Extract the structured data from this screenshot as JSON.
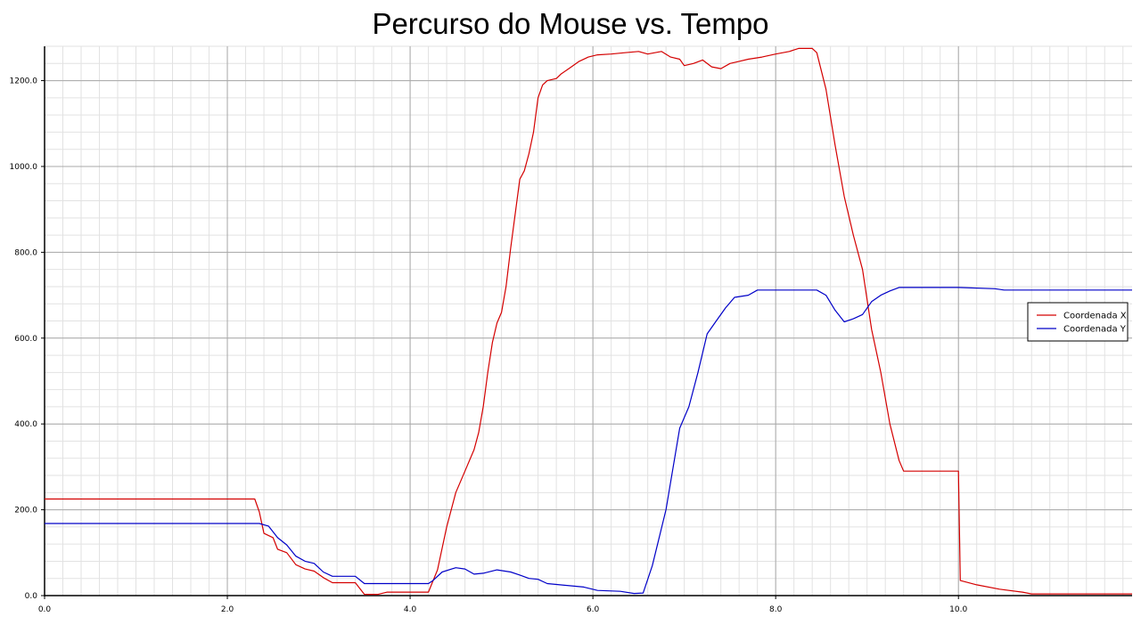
{
  "chart_data": {
    "type": "line",
    "title": "Percurso do Mouse vs. Tempo",
    "xlabel": "",
    "ylabel": "",
    "xlim": [
      0,
      11.9
    ],
    "ylim": [
      0,
      1280
    ],
    "x_ticks": [
      0,
      2,
      4,
      6,
      8,
      10
    ],
    "x_tick_labels": [
      "0.0",
      "2.0",
      "4.0",
      "6.0",
      "8.0",
      "10.0"
    ],
    "y_ticks": [
      0,
      200,
      400,
      600,
      800,
      1000,
      1200
    ],
    "y_tick_labels": [
      "0.0",
      "200.0",
      "400.0",
      "600.0",
      "800.0",
      "1000.0",
      "1200.0"
    ],
    "grid": true,
    "legend_position": "right",
    "series": [
      {
        "name": "Coordenada X",
        "color": "#d40000",
        "points": [
          [
            0,
            225
          ],
          [
            2.3,
            225
          ],
          [
            2.35,
            195
          ],
          [
            2.4,
            145
          ],
          [
            2.5,
            135
          ],
          [
            2.55,
            108
          ],
          [
            2.65,
            100
          ],
          [
            2.75,
            72
          ],
          [
            2.85,
            62
          ],
          [
            2.95,
            57
          ],
          [
            3.05,
            42
          ],
          [
            3.15,
            30
          ],
          [
            3.4,
            30
          ],
          [
            3.5,
            3
          ],
          [
            3.65,
            3
          ],
          [
            3.75,
            8
          ],
          [
            4.2,
            8
          ],
          [
            4.3,
            60
          ],
          [
            4.4,
            160
          ],
          [
            4.5,
            240
          ],
          [
            4.6,
            290
          ],
          [
            4.7,
            340
          ],
          [
            4.75,
            380
          ],
          [
            4.8,
            440
          ],
          [
            4.85,
            520
          ],
          [
            4.9,
            590
          ],
          [
            4.95,
            635
          ],
          [
            5.0,
            660
          ],
          [
            5.05,
            720
          ],
          [
            5.1,
            810
          ],
          [
            5.15,
            890
          ],
          [
            5.2,
            970
          ],
          [
            5.25,
            990
          ],
          [
            5.3,
            1030
          ],
          [
            5.35,
            1080
          ],
          [
            5.4,
            1160
          ],
          [
            5.45,
            1190
          ],
          [
            5.5,
            1200
          ],
          [
            5.6,
            1205
          ],
          [
            5.65,
            1215
          ],
          [
            5.75,
            1230
          ],
          [
            5.85,
            1245
          ],
          [
            5.95,
            1255
          ],
          [
            6.05,
            1260
          ],
          [
            6.2,
            1262
          ],
          [
            6.35,
            1265
          ],
          [
            6.5,
            1268
          ],
          [
            6.6,
            1262
          ],
          [
            6.75,
            1268
          ],
          [
            6.85,
            1255
          ],
          [
            6.95,
            1250
          ],
          [
            7.0,
            1235
          ],
          [
            7.1,
            1240
          ],
          [
            7.2,
            1248
          ],
          [
            7.3,
            1232
          ],
          [
            7.4,
            1228
          ],
          [
            7.5,
            1240
          ],
          [
            7.6,
            1245
          ],
          [
            7.7,
            1250
          ],
          [
            7.85,
            1255
          ],
          [
            8.0,
            1262
          ],
          [
            8.15,
            1268
          ],
          [
            8.25,
            1275
          ],
          [
            8.4,
            1275
          ],
          [
            8.45,
            1265
          ],
          [
            8.55,
            1180
          ],
          [
            8.65,
            1050
          ],
          [
            8.75,
            930
          ],
          [
            8.85,
            840
          ],
          [
            8.95,
            760
          ],
          [
            9.05,
            620
          ],
          [
            9.15,
            520
          ],
          [
            9.25,
            400
          ],
          [
            9.35,
            315
          ],
          [
            9.4,
            290
          ],
          [
            10.0,
            290
          ],
          [
            10.02,
            35
          ],
          [
            10.2,
            25
          ],
          [
            10.45,
            15
          ],
          [
            10.7,
            8
          ],
          [
            10.8,
            4
          ],
          [
            11.9,
            4
          ]
        ]
      },
      {
        "name": "Coordenada Y",
        "color": "#0000c8",
        "points": [
          [
            0,
            168
          ],
          [
            2.35,
            168
          ],
          [
            2.45,
            162
          ],
          [
            2.55,
            135
          ],
          [
            2.65,
            118
          ],
          [
            2.75,
            92
          ],
          [
            2.85,
            80
          ],
          [
            2.95,
            75
          ],
          [
            3.05,
            55
          ],
          [
            3.15,
            45
          ],
          [
            3.4,
            45
          ],
          [
            3.5,
            28
          ],
          [
            4.2,
            28
          ],
          [
            4.25,
            35
          ],
          [
            4.35,
            55
          ],
          [
            4.5,
            65
          ],
          [
            4.6,
            62
          ],
          [
            4.7,
            50
          ],
          [
            4.8,
            52
          ],
          [
            4.95,
            60
          ],
          [
            5.1,
            55
          ],
          [
            5.2,
            48
          ],
          [
            5.3,
            40
          ],
          [
            5.4,
            38
          ],
          [
            5.5,
            28
          ],
          [
            5.9,
            20
          ],
          [
            6.05,
            12
          ],
          [
            6.3,
            10
          ],
          [
            6.45,
            5
          ],
          [
            6.55,
            6
          ],
          [
            6.65,
            70
          ],
          [
            6.8,
            200
          ],
          [
            6.95,
            390
          ],
          [
            7.05,
            440
          ],
          [
            7.15,
            520
          ],
          [
            7.25,
            610
          ],
          [
            7.35,
            640
          ],
          [
            7.45,
            670
          ],
          [
            7.55,
            695
          ],
          [
            7.7,
            700
          ],
          [
            7.8,
            712
          ],
          [
            8.0,
            712
          ],
          [
            8.45,
            712
          ],
          [
            8.55,
            700
          ],
          [
            8.65,
            665
          ],
          [
            8.75,
            638
          ],
          [
            8.85,
            645
          ],
          [
            8.95,
            655
          ],
          [
            9.05,
            685
          ],
          [
            9.15,
            700
          ],
          [
            9.25,
            710
          ],
          [
            9.35,
            718
          ],
          [
            10.0,
            718
          ],
          [
            10.4,
            715
          ],
          [
            10.5,
            712
          ],
          [
            11.9,
            712
          ]
        ]
      }
    ]
  }
}
